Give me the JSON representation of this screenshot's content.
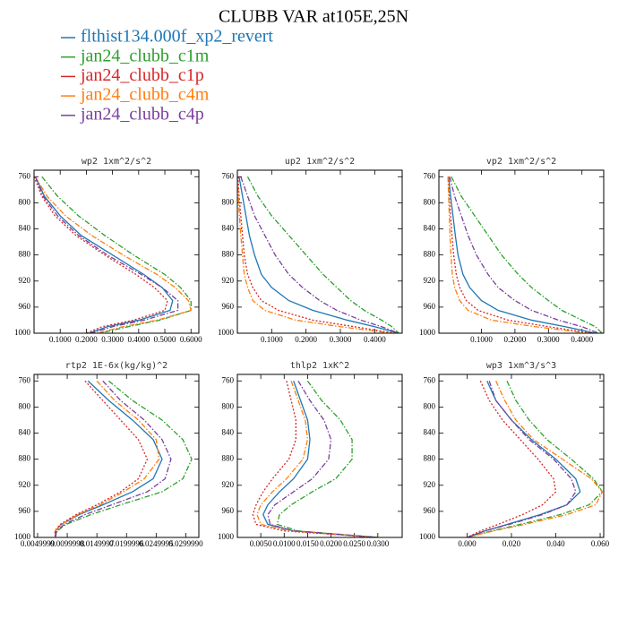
{
  "title": "CLUBB VAR at105E,25N",
  "legend": {
    "series": [
      {
        "name": "flthist134.000f_xp2_revert",
        "color": "#1f77b4",
        "style": "solid"
      },
      {
        "name": "jan24_clubb_c1m",
        "color": "#2ca02c",
        "style": "dashdot"
      },
      {
        "name": "jan24_clubb_c1p",
        "color": "#d62728",
        "style": "dot"
      },
      {
        "name": "jan24_clubb_c4m",
        "color": "#ff7f0e",
        "style": "dashdot"
      },
      {
        "name": "jan24_clubb_c4p",
        "color": "#7b3f9e",
        "style": "dashdot"
      }
    ]
  },
  "chart_data": [
    {
      "type": "line",
      "title": "wp2  1xm^2/s^2",
      "levels": [
        760,
        790,
        820,
        850,
        880,
        910,
        930,
        950,
        965,
        980,
        990,
        1000
      ],
      "ylim": [
        1000,
        750
      ],
      "yticks": [
        760,
        800,
        840,
        880,
        920,
        960,
        1000
      ],
      "xlim": [
        0,
        0.63
      ],
      "xticks": [
        {
          "value": 0.1,
          "label": "0.1000"
        },
        {
          "value": 0.2,
          "label": "0.2000"
        },
        {
          "value": 0.3,
          "label": "0.3000"
        },
        {
          "value": 0.4,
          "label": "0.4000"
        },
        {
          "value": 0.5,
          "label": "0.5000"
        },
        {
          "value": 0.6,
          "label": "0.6000"
        }
      ],
      "series": [
        {
          "values": [
            0.005,
            0.04,
            0.1,
            0.18,
            0.3,
            0.42,
            0.49,
            0.53,
            0.52,
            0.4,
            0.28,
            0.21
          ]
        },
        {
          "values": [
            0.03,
            0.09,
            0.17,
            0.27,
            0.38,
            0.5,
            0.56,
            0.6,
            0.6,
            0.48,
            0.36,
            0.25
          ]
        },
        {
          "values": [
            0.0,
            0.03,
            0.08,
            0.16,
            0.27,
            0.39,
            0.46,
            0.51,
            0.5,
            0.38,
            0.26,
            0.2
          ]
        },
        {
          "values": [
            0.005,
            0.05,
            0.12,
            0.22,
            0.34,
            0.47,
            0.54,
            0.59,
            0.6,
            0.47,
            0.34,
            0.24
          ]
        },
        {
          "values": [
            0.005,
            0.035,
            0.09,
            0.17,
            0.28,
            0.41,
            0.49,
            0.55,
            0.55,
            0.42,
            0.3,
            0.22
          ]
        }
      ]
    },
    {
      "type": "line",
      "title": "up2  1xm^2/s^2",
      "levels": [
        760,
        790,
        820,
        850,
        880,
        910,
        930,
        950,
        965,
        980,
        990,
        1000
      ],
      "ylim": [
        1000,
        750
      ],
      "yticks": [
        760,
        800,
        840,
        880,
        920,
        960,
        1000
      ],
      "xlim": [
        0,
        0.48
      ],
      "xticks": [
        {
          "value": 0.1,
          "label": "0.1000"
        },
        {
          "value": 0.2,
          "label": "0.2000"
        },
        {
          "value": 0.3,
          "label": "0.3000"
        },
        {
          "value": 0.4,
          "label": "0.4000"
        }
      ],
      "series": [
        {
          "values": [
            0.005,
            0.015,
            0.025,
            0.035,
            0.05,
            0.07,
            0.1,
            0.15,
            0.22,
            0.32,
            0.4,
            0.47
          ]
        },
        {
          "values": [
            0.03,
            0.06,
            0.1,
            0.15,
            0.2,
            0.25,
            0.29,
            0.33,
            0.37,
            0.42,
            0.45,
            0.47
          ]
        },
        {
          "values": [
            0.002,
            0.005,
            0.01,
            0.015,
            0.02,
            0.03,
            0.045,
            0.07,
            0.12,
            0.22,
            0.34,
            0.46
          ]
        },
        {
          "values": [
            0.0,
            0.003,
            0.006,
            0.01,
            0.015,
            0.02,
            0.03,
            0.045,
            0.08,
            0.17,
            0.3,
            0.45
          ]
        },
        {
          "values": [
            0.01,
            0.03,
            0.05,
            0.08,
            0.11,
            0.15,
            0.19,
            0.24,
            0.29,
            0.36,
            0.42,
            0.47
          ]
        }
      ]
    },
    {
      "type": "line",
      "title": "vp2  1xm^2/s^2",
      "levels": [
        760,
        790,
        820,
        850,
        880,
        910,
        930,
        950,
        965,
        980,
        990,
        1000
      ],
      "ylim": [
        1000,
        750
      ],
      "yticks": [
        760,
        800,
        840,
        880,
        920,
        960,
        1000
      ],
      "xlim": [
        -0.027,
        0.465
      ],
      "xticks": [
        {
          "value": 0.1,
          "label": "0.1000"
        },
        {
          "value": 0.2,
          "label": "0.2000"
        },
        {
          "value": 0.3,
          "label": "0.3000"
        },
        {
          "value": 0.4,
          "label": "0.4000"
        }
      ],
      "series": [
        {
          "values": [
            0.002,
            0.008,
            0.015,
            0.022,
            0.03,
            0.045,
            0.065,
            0.1,
            0.15,
            0.25,
            0.35,
            0.44
          ]
        },
        {
          "values": [
            0.01,
            0.04,
            0.08,
            0.12,
            0.16,
            0.21,
            0.25,
            0.3,
            0.34,
            0.4,
            0.44,
            0.46
          ]
        },
        {
          "values": [
            0.001,
            0.004,
            0.008,
            0.012,
            0.017,
            0.025,
            0.035,
            0.055,
            0.09,
            0.18,
            0.3,
            0.43
          ]
        },
        {
          "values": [
            0.0,
            0.002,
            0.004,
            0.006,
            0.009,
            0.013,
            0.02,
            0.035,
            0.06,
            0.13,
            0.26,
            0.42
          ]
        },
        {
          "values": [
            0.005,
            0.02,
            0.04,
            0.06,
            0.085,
            0.12,
            0.15,
            0.2,
            0.25,
            0.33,
            0.4,
            0.45
          ]
        }
      ]
    },
    {
      "type": "line",
      "title": "rtp2  1E-6x(kg/kg)^2",
      "levels": [
        760,
        790,
        820,
        850,
        880,
        910,
        930,
        950,
        965,
        980,
        990,
        1000
      ],
      "ylim": [
        1000,
        750
      ],
      "yticks": [
        760,
        800,
        840,
        880,
        920,
        960,
        1000
      ],
      "xlim": [
        0.0044,
        0.0322
      ],
      "xticks": [
        {
          "value": 0.005,
          "label": "0.0049999"
        },
        {
          "value": 0.01,
          "label": "0.0099998"
        },
        {
          "value": 0.015,
          "label": "0.0149997"
        },
        {
          "value": 0.02,
          "label": "0.0199996"
        },
        {
          "value": 0.025,
          "label": "0.0249995"
        },
        {
          "value": 0.03,
          "label": "0.0299990"
        }
      ],
      "series": [
        {
          "values": [
            0.0135,
            0.017,
            0.021,
            0.0245,
            0.026,
            0.0245,
            0.021,
            0.016,
            0.012,
            0.009,
            0.008,
            0.008
          ]
        },
        {
          "values": [
            0.017,
            0.021,
            0.026,
            0.0295,
            0.031,
            0.0295,
            0.026,
            0.019,
            0.014,
            0.0098,
            0.0083,
            0.008
          ]
        },
        {
          "values": [
            0.013,
            0.016,
            0.019,
            0.022,
            0.0235,
            0.022,
            0.019,
            0.015,
            0.0115,
            0.0088,
            0.0079,
            0.008
          ]
        },
        {
          "values": [
            0.015,
            0.018,
            0.022,
            0.025,
            0.0255,
            0.023,
            0.0195,
            0.0155,
            0.0118,
            0.009,
            0.008,
            0.008
          ]
        },
        {
          "values": [
            0.016,
            0.019,
            0.023,
            0.026,
            0.0275,
            0.0265,
            0.0235,
            0.0175,
            0.013,
            0.0095,
            0.0082,
            0.008
          ]
        }
      ]
    },
    {
      "type": "line",
      "title": "thlp2  1xK^2",
      "levels": [
        760,
        790,
        820,
        850,
        880,
        910,
        930,
        950,
        965,
        980,
        990,
        1000
      ],
      "ylim": [
        1000,
        750
      ],
      "yticks": [
        760,
        800,
        840,
        880,
        920,
        960,
        1000
      ],
      "xlim": [
        0,
        0.0352
      ],
      "xticks": [
        {
          "value": 0.005,
          "label": "0.0050"
        },
        {
          "value": 0.01,
          "label": "0.0100"
        },
        {
          "value": 0.015,
          "label": "0.0150"
        },
        {
          "value": 0.02,
          "label": "0.0200"
        },
        {
          "value": 0.025,
          "label": "0.0250"
        },
        {
          "value": 0.03,
          "label": "0.0300"
        }
      ],
      "series": [
        {
          "values": [
            0.012,
            0.0135,
            0.015,
            0.0155,
            0.015,
            0.012,
            0.009,
            0.0065,
            0.0055,
            0.0065,
            0.012,
            0.03
          ]
        },
        {
          "values": [
            0.015,
            0.018,
            0.022,
            0.0245,
            0.0245,
            0.021,
            0.016,
            0.0115,
            0.009,
            0.0085,
            0.013,
            0.03
          ]
        },
        {
          "values": [
            0.0105,
            0.0115,
            0.0125,
            0.0125,
            0.011,
            0.0075,
            0.0055,
            0.004,
            0.0033,
            0.004,
            0.01,
            0.03
          ]
        },
        {
          "values": [
            0.0115,
            0.013,
            0.0145,
            0.015,
            0.014,
            0.0105,
            0.0075,
            0.005,
            0.0042,
            0.005,
            0.011,
            0.03
          ]
        },
        {
          "values": [
            0.013,
            0.0155,
            0.0185,
            0.02,
            0.0195,
            0.016,
            0.012,
            0.008,
            0.0065,
            0.007,
            0.012,
            0.03
          ]
        }
      ]
    },
    {
      "type": "line",
      "title": "wp3  1xm^3/s^3",
      "levels": [
        760,
        790,
        820,
        850,
        880,
        910,
        930,
        950,
        965,
        980,
        990,
        1000
      ],
      "ylim": [
        1000,
        750
      ],
      "yticks": [
        760,
        800,
        840,
        880,
        920,
        960,
        1000
      ],
      "xlim": [
        -0.0127,
        0.0616
      ],
      "xticks": [
        {
          "value": 0,
          "label": "0.000"
        },
        {
          "value": 0.02,
          "label": "0.020"
        },
        {
          "value": 0.04,
          "label": "0.040"
        },
        {
          "value": 0.06,
          "label": "0.060"
        }
      ],
      "series": [
        {
          "values": [
            0.009,
            0.013,
            0.02,
            0.029,
            0.04,
            0.049,
            0.051,
            0.045,
            0.033,
            0.018,
            0.008,
            0.0
          ]
        },
        {
          "values": [
            0.018,
            0.022,
            0.028,
            0.036,
            0.047,
            0.057,
            0.061,
            0.055,
            0.042,
            0.024,
            0.011,
            0.0
          ]
        },
        {
          "values": [
            0.006,
            0.01,
            0.016,
            0.024,
            0.032,
            0.039,
            0.04,
            0.034,
            0.025,
            0.014,
            0.006,
            0.0
          ]
        },
        {
          "values": [
            0.013,
            0.017,
            0.022,
            0.03,
            0.043,
            0.056,
            0.061,
            0.058,
            0.045,
            0.026,
            0.012,
            0.0
          ]
        },
        {
          "values": [
            0.01,
            0.013,
            0.02,
            0.028,
            0.039,
            0.047,
            0.049,
            0.045,
            0.034,
            0.019,
            0.008,
            0.0
          ]
        }
      ]
    }
  ]
}
